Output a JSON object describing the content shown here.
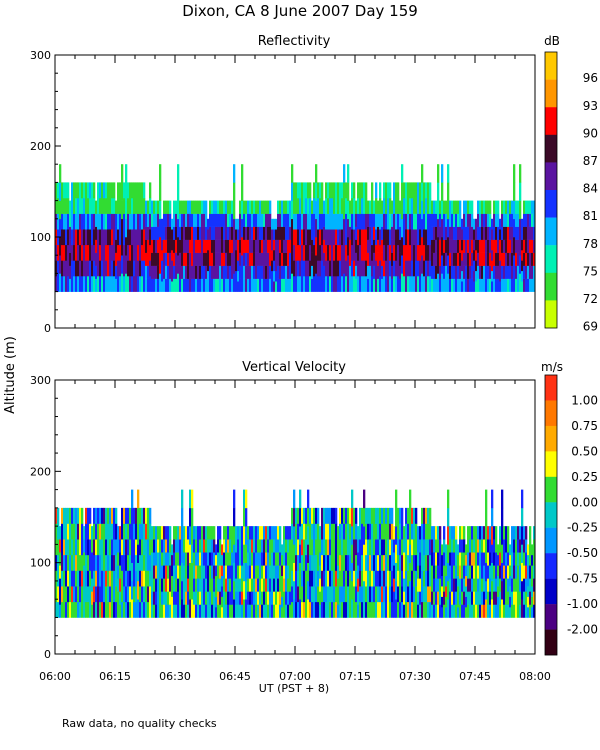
{
  "chart_data": [
    {
      "type": "heatmap",
      "suptitle": "Dixon, CA  8 June 2007  Day 159",
      "title": "Reflectivity",
      "ylabel": "Altitude (m)",
      "ylim": [
        0,
        300
      ],
      "yticks": [
        "0",
        "100",
        "200",
        "300"
      ],
      "xlim_hours": [
        6.0,
        8.0
      ],
      "units": "dB",
      "colorbar_labels": [
        "96",
        "93",
        "90",
        "87",
        "84",
        "81",
        "78",
        "75",
        "72",
        "69"
      ],
      "colors": [
        "#ffc800",
        "#ff9600",
        "#ff0000",
        "#3c0a28",
        "#5a14a0",
        "#1432ff",
        "#00b4ff",
        "#00f0b4",
        "#32dc32",
        "#c8ff00"
      ],
      "data_range_m": [
        40,
        180
      ],
      "description": "Echo heights mostly 40-160 m, tops to 180 m; strongest (84-90 dB) between 60-120 m"
    },
    {
      "type": "heatmap",
      "title": "Vertical Velocity",
      "ylim": [
        0,
        300
      ],
      "yticks": [
        "0",
        "100",
        "200",
        "300"
      ],
      "xlim_hours": [
        6.0,
        8.0
      ],
      "xticks": [
        "06:00",
        "06:15",
        "06:30",
        "06:45",
        "07:00",
        "07:15",
        "07:30",
        "07:45",
        "08:00"
      ],
      "xlabel": "UT  (PST + 8)",
      "units": "m/s",
      "colorbar_labels": [
        "1.00",
        "0.75",
        "0.50",
        "0.25",
        "0.00",
        "-0.25",
        "-0.50",
        "-0.75",
        "-1.00",
        "-2.00"
      ],
      "colors": [
        "#ff3214",
        "#ff7800",
        "#ffaa00",
        "#ffff00",
        "#32dc32",
        "#00c8c8",
        "#0096ff",
        "#1428ff",
        "#0000c8",
        "#4b0082",
        "#320014"
      ],
      "data_range_m": [
        40,
        180
      ]
    }
  ],
  "footnote": "Raw data, no quality checks"
}
